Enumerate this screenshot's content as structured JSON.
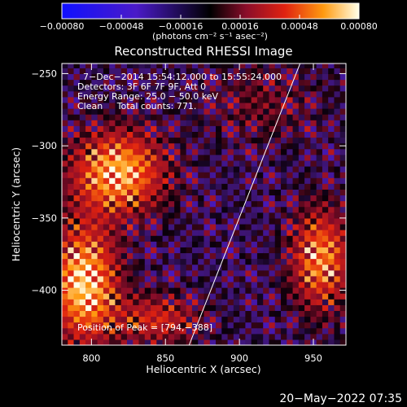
{
  "chart_data": {
    "type": "heatmap",
    "title": "Reconstructed RHESSI Image",
    "xlabel": "Heliocentric X (arcsec)",
    "ylabel": "Heliocentric Y (arcsec)",
    "xlim": [
      780,
      972
    ],
    "ylim": [
      -438,
      -243
    ],
    "x_ticks": [
      800,
      850,
      900,
      950
    ],
    "y_ticks": [
      -400,
      -350,
      -300,
      -250
    ],
    "x_tick_labels": [
      "800",
      "850",
      "900",
      "950"
    ],
    "y_tick_labels": [
      "−400",
      "−350",
      "−300",
      "−250"
    ],
    "colorbar": {
      "min": -0.0008,
      "max": 0.0008,
      "ticks": [
        -0.0008,
        -0.00048,
        -0.00016,
        0.00016,
        0.00048,
        0.0008
      ],
      "tick_labels": [
        "−0.00080",
        "−0.00048",
        "−0.00016",
        "0.00016",
        "0.00048",
        "0.00080"
      ],
      "units_label": "(photons cm⁻² s⁻¹ asec⁻²)"
    },
    "annotations": [
      "7−Dec−2014 15:54:12.000 to 15:55:24.000",
      "Detectors: 3F 6F 7F 9F, Att 0",
      "Energy Range: 25.0 − 50.0 keV",
      "Clean     Total counts: 771."
    ],
    "peak_label": "Position of Peak = [794,−388]",
    "peak": [
      794,
      -388
    ],
    "limb_line": [
      [
        866,
        -438
      ],
      [
        941,
        -243
      ]
    ],
    "sources": [
      {
        "x": 818,
        "y": -318,
        "amp": 0.00072,
        "sx": 22,
        "sy": 20
      },
      {
        "x": 795,
        "y": -395,
        "amp": 0.00078,
        "sx": 16,
        "sy": 28
      },
      {
        "x": 955,
        "y": -378,
        "amp": 0.00062,
        "sx": 14,
        "sy": 24
      },
      {
        "x": 845,
        "y": -420,
        "amp": 0.0004,
        "sx": 20,
        "sy": 12
      },
      {
        "x": 915,
        "y": -270,
        "amp": 0.00018,
        "sx": 28,
        "sy": 20
      }
    ],
    "background": -5e-05
  },
  "footer_date": "20−May−2022 07:35"
}
